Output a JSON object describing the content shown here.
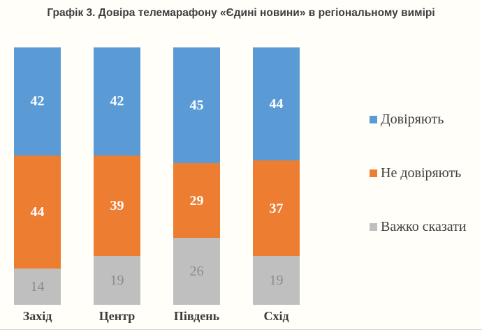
{
  "title": "Графік 3. Довіра телемарафону «Єдині новини» в регіональному вимірі",
  "chart_data": {
    "type": "bar",
    "stacked": true,
    "orientation": "vertical",
    "categories": [
      "Захід",
      "Центр",
      "Південь",
      "Схід"
    ],
    "series": [
      {
        "name": "Довіряють",
        "color": "#5B9BD5",
        "values": [
          42,
          42,
          45,
          44
        ],
        "label_style": "light"
      },
      {
        "name": "Не довіряють",
        "color": "#ED7D31",
        "values": [
          44,
          39,
          29,
          37
        ],
        "label_style": "light"
      },
      {
        "name": "Важко сказати",
        "color": "#BFBFBF",
        "values": [
          14,
          19,
          26,
          19
        ],
        "label_style": "dark"
      }
    ],
    "ylim": [
      0,
      100
    ],
    "grid": false,
    "data_labels": true,
    "legend_position": "right"
  }
}
